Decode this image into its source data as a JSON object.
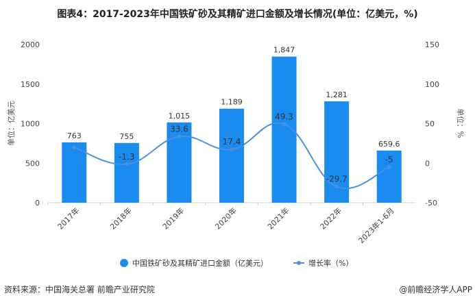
{
  "title": "图表4：2017-2023年中国铁矿砂及其精矿进口金额及增长情况(单位：亿美元，%)",
  "source": "资料来源：中国海关总署 前瞻产业研究院",
  "credit": "@前瞻经济学人APP",
  "colors": {
    "bar": "#1a8cf0",
    "line": "#4a90e2",
    "label": "#333333"
  },
  "chart_data": {
    "type": "bar+line",
    "categories": [
      "2017年",
      "2018年",
      "2019年",
      "2020年",
      "2021年",
      "2022年",
      "2023年1-6月"
    ],
    "series": [
      {
        "name": "中国铁矿砂及其精矿进口金额（亿美元）",
        "type": "bar",
        "axis": "left",
        "values": [
          763,
          755,
          1015,
          1189,
          1847,
          1281,
          659.6
        ],
        "labels": [
          "763",
          "755",
          "1,015",
          "1,189",
          "1,847",
          "1,281",
          "659.6"
        ]
      },
      {
        "name": "增长率（%）",
        "type": "line",
        "smooth": true,
        "axis": "right",
        "values": [
          20,
          -1.3,
          33.6,
          17.4,
          49.3,
          -29.7,
          -5
        ],
        "labels": [
          "",
          "-1.3",
          "33.6",
          "17.4",
          "49.3",
          "-29.7",
          "-5"
        ]
      }
    ],
    "ylabel_left": "单位：亿美元",
    "ylabel_right": "单位：%",
    "ylim_left": [
      0,
      2000
    ],
    "yticks_left": [
      0,
      500,
      1000,
      1500,
      2000
    ],
    "ylim_right": [
      -50,
      150
    ],
    "yticks_right": [
      -50,
      0,
      50,
      100,
      150
    ],
    "grid": false,
    "legend": "bottom"
  }
}
